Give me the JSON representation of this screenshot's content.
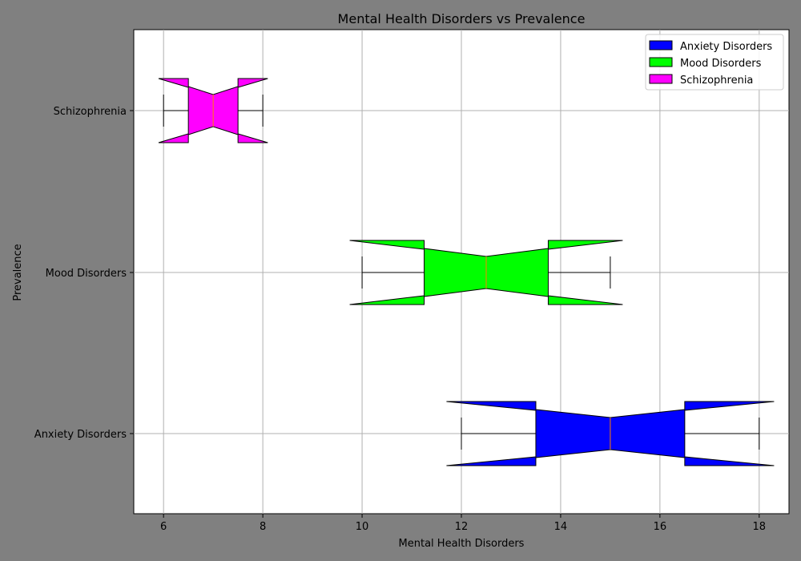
{
  "chart_data": {
    "type": "boxplot",
    "title": "Mental Health Disorders vs Prevalence",
    "xlabel": "Mental Health Disorders",
    "ylabel": "Prevalence",
    "xlim": [
      5.4,
      18.6
    ],
    "xticks": [
      6,
      8,
      10,
      12,
      14,
      16,
      18
    ],
    "categories": [
      "Anxiety Disorders",
      "Mood Disorders",
      "Schizophrenia"
    ],
    "series": [
      {
        "name": "Anxiety Disorders",
        "color": "#0000ff",
        "min": 12,
        "q1": 13.5,
        "median": 15,
        "q3": 16.5,
        "max": 18,
        "notch_low": 11.7,
        "notch_high": 18.3
      },
      {
        "name": "Mood Disorders",
        "color": "#00ff00",
        "min": 10,
        "q1": 11.25,
        "median": 12.5,
        "q3": 13.75,
        "max": 15,
        "notch_low": 9.75,
        "notch_high": 15.25
      },
      {
        "name": "Schizophrenia",
        "color": "#ff00ff",
        "min": 6,
        "q1": 6.5,
        "median": 7,
        "q3": 7.5,
        "max": 8,
        "notch_low": 5.9,
        "notch_high": 8.1
      }
    ],
    "grid": true,
    "legend_position": "top-right",
    "median_color": "#ff8000"
  }
}
